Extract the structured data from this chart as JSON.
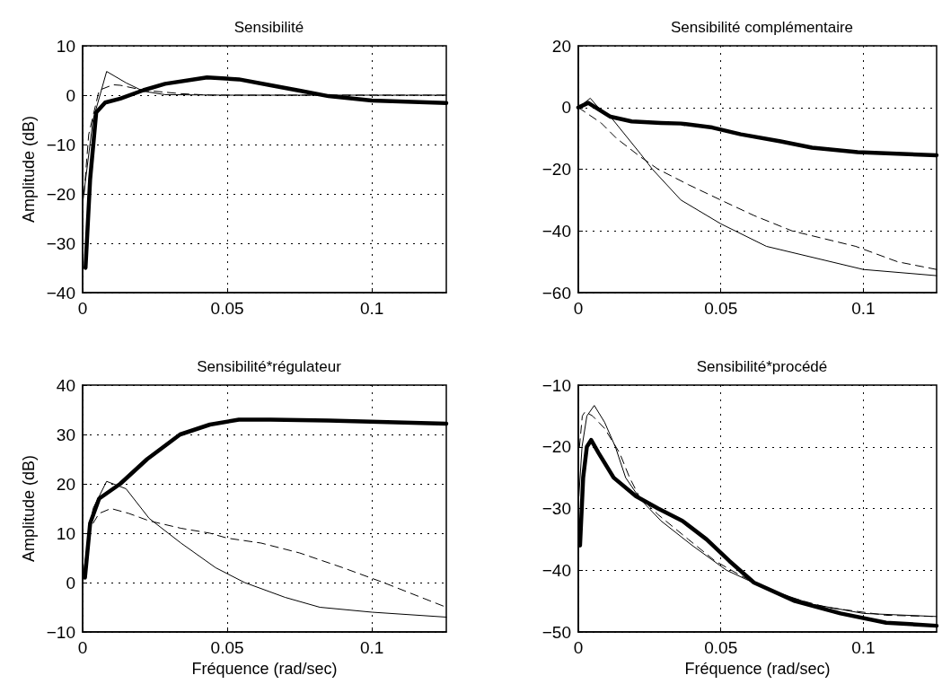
{
  "chart_data": [
    {
      "type": "line",
      "title": "Sensibilité",
      "ylabel": "Amplitude (dB)",
      "xlim": [
        0,
        0.1257
      ],
      "xticks": [
        0,
        0.05,
        0.1
      ],
      "ylim": [
        -40,
        10
      ],
      "yticks": [
        -40,
        -30,
        -20,
        -10,
        0,
        10
      ],
      "grid": true,
      "tick_labels": "xy",
      "series": [
        {
          "color": "#000000",
          "line_style": "solid",
          "x": [
            0.001,
            0.0026,
            0.0047,
            0.0078,
            0.013,
            0.021,
            0.0285,
            0.043,
            0.054,
            0.065,
            0.075,
            0.085,
            0.1,
            0.1257
          ],
          "values": [
            -35,
            -17,
            -3.5,
            -1.5,
            -0.7,
            1,
            2.3,
            3.6,
            3.2,
            2,
            0.9,
            -0.2,
            -1.1,
            -1.6
          ]
        },
        {
          "color": "#000000",
          "line_style": "solid",
          "x": [
            0,
            0.0036,
            0.0083,
            0.015,
            0.021,
            0.0285,
            0.05,
            0.1,
            0.1257
          ],
          "values": [
            -22,
            -5,
            4.8,
            2.5,
            0.8,
            0.1,
            0,
            0,
            0
          ]
        },
        {
          "color": "#000000",
          "line_style": "dashed",
          "x": [
            0.0005,
            0.0021,
            0.0057,
            0.0105,
            0.013,
            0.021,
            0.034,
            0.044,
            0.1,
            0.1257
          ],
          "values": [
            -20,
            -8,
            1,
            2.1,
            2,
            1,
            0.3,
            0,
            0,
            0
          ]
        }
      ]
    },
    {
      "type": "line",
      "title": "Sensibilité complémentaire",
      "xlim": [
        0,
        0.1257
      ],
      "xticks": [
        0,
        0.05,
        0.1
      ],
      "ylim": [
        -60,
        20
      ],
      "yticks": [
        -60,
        -40,
        -20,
        0,
        20
      ],
      "grid": true,
      "tick_labels": "xy",
      "series": [
        {
          "color": "#000000",
          "line_style": "solid",
          "x": [
            0,
            0.0035,
            0.0113,
            0.0187,
            0.029,
            0.036,
            0.047,
            0.057,
            0.071,
            0.082,
            0.098,
            0.1257
          ],
          "values": [
            0,
            1.5,
            -3,
            -4.5,
            -5,
            -5.2,
            -6.5,
            -8.7,
            -11,
            -13,
            -14.5,
            -15.5
          ]
        },
        {
          "color": "#000000",
          "line_style": "solid",
          "x": [
            0,
            0.0042,
            0.007,
            0.0113,
            0.0218,
            0.026,
            0.036,
            0.05,
            0.066,
            0.1,
            0.1257
          ],
          "values": [
            0,
            3,
            0,
            -3,
            -15,
            -20,
            -30,
            -37.7,
            -45,
            -52.5,
            -54.5
          ]
        },
        {
          "color": "#000000",
          "line_style": "dashed",
          "x": [
            0,
            0.008,
            0.0134,
            0.0218,
            0.028,
            0.0386,
            0.05,
            0.0616,
            0.075,
            0.0973,
            0.112,
            0.1257
          ],
          "values": [
            0,
            -5,
            -10,
            -16,
            -20,
            -25,
            -30,
            -35,
            -40,
            -45,
            -50,
            -52.5
          ]
        }
      ]
    },
    {
      "type": "line",
      "title": "Sensibilité*régulateur",
      "xlabel": "Fréquence (rad/sec)",
      "ylabel": "Amplitude (dB)",
      "xlim": [
        0,
        0.1257
      ],
      "xticks": [
        0,
        0.05,
        0.1
      ],
      "ylim": [
        -10,
        40
      ],
      "yticks": [
        -10,
        0,
        10,
        20,
        30,
        40
      ],
      "grid": true,
      "tick_labels": "xy",
      "series": [
        {
          "color": "#000000",
          "line_style": "solid",
          "x": [
            0.0008,
            0.0026,
            0.0057,
            0.013,
            0.0223,
            0.0337,
            0.044,
            0.054,
            0.065,
            0.085,
            0.1257
          ],
          "values": [
            1,
            12,
            17,
            20,
            25,
            30,
            32,
            33,
            33,
            32.8,
            32.2
          ]
        },
        {
          "color": "#000000",
          "line_style": "solid",
          "x": [
            0.0002,
            0.0036,
            0.0083,
            0.015,
            0.023,
            0.034,
            0.046,
            0.056,
            0.07,
            0.082,
            0.1,
            0.1257
          ],
          "values": [
            1.6,
            15,
            20.5,
            19,
            13,
            8,
            3,
            0,
            -3,
            -5,
            -6,
            -7
          ]
        },
        {
          "color": "#000000",
          "line_style": "dashed",
          "x": [
            0.0036,
            0.0057,
            0.0098,
            0.016,
            0.023,
            0.034,
            0.044,
            0.05,
            0.0617,
            0.075,
            0.09,
            0.104,
            0.117,
            0.1257
          ],
          "values": [
            12,
            14,
            15,
            14,
            12.5,
            11,
            10,
            9,
            8,
            6,
            3,
            0,
            -3,
            -5
          ]
        }
      ]
    },
    {
      "type": "line",
      "title": "Sensibilité*procédé",
      "xlabel": "Fréquence (rad/sec)",
      "xlim": [
        0,
        0.1257
      ],
      "xticks": [
        0,
        0.05,
        0.1
      ],
      "ylim": [
        -50,
        -10
      ],
      "yticks": [
        -50,
        -40,
        -30,
        -20,
        -10
      ],
      "grid": true,
      "tick_labels": "xy",
      "series": [
        {
          "color": "#000000",
          "line_style": "solid",
          "x": [
            0.0006,
            0.0017,
            0.003,
            0.0045,
            0.0071,
            0.0124,
            0.0202,
            0.028,
            0.0365,
            0.045,
            0.053,
            0.0616,
            0.076,
            0.092,
            0.108,
            0.1257
          ],
          "values": [
            -36,
            -25,
            -20,
            -18.9,
            -21,
            -25,
            -28,
            -30,
            -32,
            -35,
            -38.5,
            -42,
            -45,
            -47,
            -48.5,
            -49
          ]
        },
        {
          "color": "#000000",
          "line_style": "solid",
          "x": [
            0.0002,
            0.0013,
            0.003,
            0.0056,
            0.0092,
            0.013,
            0.0166,
            0.0218,
            0.029,
            0.04,
            0.052,
            0.066,
            0.082,
            0.1,
            0.1257
          ],
          "values": [
            -28,
            -20,
            -15,
            -13.3,
            -16,
            -20,
            -25,
            -28.5,
            -32,
            -36,
            -40,
            -43,
            -45.5,
            -47,
            -47.5
          ]
        },
        {
          "color": "#000000",
          "line_style": "dashed",
          "x": [
            0.0004,
            0.0014,
            0.0024,
            0.005,
            0.0092,
            0.0145,
            0.018,
            0.0213,
            0.028,
            0.0386,
            0.048,
            0.0575,
            0.071,
            0.087,
            0.108,
            0.1257
          ],
          "values": [
            -20,
            -15,
            -14.3,
            -15,
            -17,
            -21,
            -25,
            -28,
            -31,
            -35,
            -38.5,
            -41,
            -44,
            -46,
            -47.3,
            -47.5
          ]
        }
      ]
    }
  ]
}
